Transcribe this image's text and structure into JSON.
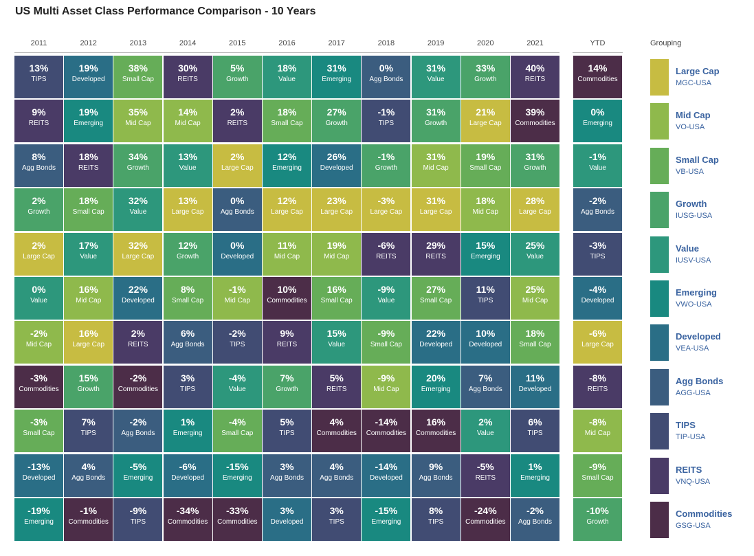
{
  "title": "US Multi Asset Class Performance Comparison - 10 Years",
  "grouping_label": "Grouping",
  "chart_data": {
    "type": "table",
    "title": "US Multi Asset Class Performance Comparison - 10 Years",
    "columns": [
      "2011",
      "2012",
      "2013",
      "2014",
      "2015",
      "2016",
      "2017",
      "2018",
      "2019",
      "2020",
      "2021",
      "YTD"
    ],
    "colors": {
      "Large Cap": "#c7bc42",
      "Mid Cap": "#8fb94c",
      "Small Cap": "#66ad58",
      "Growth": "#4aa369",
      "Value": "#2d977c",
      "Emerging": "#198980",
      "Developed": "#2a6e86",
      "Agg Bonds": "#3b5d7f",
      "TIPS": "#414c73",
      "REITS": "#4a3b66",
      "Commodities": "#4c2d48"
    },
    "legend": [
      {
        "name": "Large Cap",
        "ticker": "MGC-USA"
      },
      {
        "name": "Mid Cap",
        "ticker": "VO-USA"
      },
      {
        "name": "Small Cap",
        "ticker": "VB-USA"
      },
      {
        "name": "Growth",
        "ticker": "IUSG-USA"
      },
      {
        "name": "Value",
        "ticker": "IUSV-USA"
      },
      {
        "name": "Emerging",
        "ticker": "VWO-USA"
      },
      {
        "name": "Developed",
        "ticker": "VEA-USA"
      },
      {
        "name": "Agg Bonds",
        "ticker": "AGG-USA"
      },
      {
        "name": "TIPS",
        "ticker": "TIP-USA"
      },
      {
        "name": "REITS",
        "ticker": "VNQ-USA"
      },
      {
        "name": "Commodities",
        "ticker": "GSG-USA"
      }
    ],
    "data": [
      [
        {
          "v": "13%",
          "n": "TIPS"
        },
        {
          "v": "9%",
          "n": "REITS"
        },
        {
          "v": "8%",
          "n": "Agg Bonds"
        },
        {
          "v": "2%",
          "n": "Growth"
        },
        {
          "v": "2%",
          "n": "Large Cap"
        },
        {
          "v": "0%",
          "n": "Value"
        },
        {
          "v": "-2%",
          "n": "Mid Cap"
        },
        {
          "v": "-3%",
          "n": "Commodities"
        },
        {
          "v": "-3%",
          "n": "Small Cap"
        },
        {
          "v": "-13%",
          "n": "Developed"
        },
        {
          "v": "-19%",
          "n": "Emerging"
        }
      ],
      [
        {
          "v": "19%",
          "n": "Developed"
        },
        {
          "v": "19%",
          "n": "Emerging"
        },
        {
          "v": "18%",
          "n": "REITS"
        },
        {
          "v": "18%",
          "n": "Small Cap"
        },
        {
          "v": "17%",
          "n": "Value"
        },
        {
          "v": "16%",
          "n": "Mid Cap"
        },
        {
          "v": "16%",
          "n": "Large Cap"
        },
        {
          "v": "15%",
          "n": "Growth"
        },
        {
          "v": "7%",
          "n": "TIPS"
        },
        {
          "v": "4%",
          "n": "Agg Bonds"
        },
        {
          "v": "-1%",
          "n": "Commodities"
        }
      ],
      [
        {
          "v": "38%",
          "n": "Small Cap"
        },
        {
          "v": "35%",
          "n": "Mid Cap"
        },
        {
          "v": "34%",
          "n": "Growth"
        },
        {
          "v": "32%",
          "n": "Value"
        },
        {
          "v": "32%",
          "n": "Large Cap"
        },
        {
          "v": "22%",
          "n": "Developed"
        },
        {
          "v": "2%",
          "n": "REITS"
        },
        {
          "v": "-2%",
          "n": "Commodities"
        },
        {
          "v": "-2%",
          "n": "Agg Bonds"
        },
        {
          "v": "-5%",
          "n": "Emerging"
        },
        {
          "v": "-9%",
          "n": "TIPS"
        }
      ],
      [
        {
          "v": "30%",
          "n": "REITS"
        },
        {
          "v": "14%",
          "n": "Mid Cap"
        },
        {
          "v": "13%",
          "n": "Value"
        },
        {
          "v": "13%",
          "n": "Large Cap"
        },
        {
          "v": "12%",
          "n": "Growth"
        },
        {
          "v": "8%",
          "n": "Small Cap"
        },
        {
          "v": "6%",
          "n": "Agg Bonds"
        },
        {
          "v": "3%",
          "n": "TIPS"
        },
        {
          "v": "1%",
          "n": "Emerging"
        },
        {
          "v": "-6%",
          "n": "Developed"
        },
        {
          "v": "-34%",
          "n": "Commodities"
        }
      ],
      [
        {
          "v": "5%",
          "n": "Growth"
        },
        {
          "v": "2%",
          "n": "REITS"
        },
        {
          "v": "2%",
          "n": "Large Cap"
        },
        {
          "v": "0%",
          "n": "Agg Bonds"
        },
        {
          "v": "0%",
          "n": "Developed"
        },
        {
          "v": "-1%",
          "n": "Mid Cap"
        },
        {
          "v": "-2%",
          "n": "TIPS"
        },
        {
          "v": "-4%",
          "n": "Value"
        },
        {
          "v": "-4%",
          "n": "Small Cap"
        },
        {
          "v": "-15%",
          "n": "Emerging"
        },
        {
          "v": "-33%",
          "n": "Commodities"
        }
      ],
      [
        {
          "v": "18%",
          "n": "Value"
        },
        {
          "v": "18%",
          "n": "Small Cap"
        },
        {
          "v": "12%",
          "n": "Emerging"
        },
        {
          "v": "12%",
          "n": "Large Cap"
        },
        {
          "v": "11%",
          "n": "Mid Cap"
        },
        {
          "v": "10%",
          "n": "Commodities"
        },
        {
          "v": "9%",
          "n": "REITS"
        },
        {
          "v": "7%",
          "n": "Growth"
        },
        {
          "v": "5%",
          "n": "TIPS"
        },
        {
          "v": "3%",
          "n": "Agg Bonds"
        },
        {
          "v": "3%",
          "n": "Developed"
        }
      ],
      [
        {
          "v": "31%",
          "n": "Emerging"
        },
        {
          "v": "27%",
          "n": "Growth"
        },
        {
          "v": "26%",
          "n": "Developed"
        },
        {
          "v": "23%",
          "n": "Large Cap"
        },
        {
          "v": "19%",
          "n": "Mid Cap"
        },
        {
          "v": "16%",
          "n": "Small Cap"
        },
        {
          "v": "15%",
          "n": "Value"
        },
        {
          "v": "5%",
          "n": "REITS"
        },
        {
          "v": "4%",
          "n": "Commodities"
        },
        {
          "v": "4%",
          "n": "Agg Bonds"
        },
        {
          "v": "3%",
          "n": "TIPS"
        }
      ],
      [
        {
          "v": "0%",
          "n": "Agg Bonds"
        },
        {
          "v": "-1%",
          "n": "TIPS"
        },
        {
          "v": "-1%",
          "n": "Growth"
        },
        {
          "v": "-3%",
          "n": "Large Cap"
        },
        {
          "v": "-6%",
          "n": "REITS"
        },
        {
          "v": "-9%",
          "n": "Value"
        },
        {
          "v": "-9%",
          "n": "Small Cap"
        },
        {
          "v": "-9%",
          "n": "Mid Cap"
        },
        {
          "v": "-14%",
          "n": "Commodities"
        },
        {
          "v": "-14%",
          "n": "Developed"
        },
        {
          "v": "-15%",
          "n": "Emerging"
        }
      ],
      [
        {
          "v": "31%",
          "n": "Value"
        },
        {
          "v": "31%",
          "n": "Growth"
        },
        {
          "v": "31%",
          "n": "Mid Cap"
        },
        {
          "v": "31%",
          "n": "Large Cap"
        },
        {
          "v": "29%",
          "n": "REITS"
        },
        {
          "v": "27%",
          "n": "Small Cap"
        },
        {
          "v": "22%",
          "n": "Developed"
        },
        {
          "v": "20%",
          "n": "Emerging"
        },
        {
          "v": "16%",
          "n": "Commodities"
        },
        {
          "v": "9%",
          "n": "Agg Bonds"
        },
        {
          "v": "8%",
          "n": "TIPS"
        }
      ],
      [
        {
          "v": "33%",
          "n": "Growth"
        },
        {
          "v": "21%",
          "n": "Large Cap"
        },
        {
          "v": "19%",
          "n": "Small Cap"
        },
        {
          "v": "18%",
          "n": "Mid Cap"
        },
        {
          "v": "15%",
          "n": "Emerging"
        },
        {
          "v": "11%",
          "n": "TIPS"
        },
        {
          "v": "10%",
          "n": "Developed"
        },
        {
          "v": "7%",
          "n": "Agg Bonds"
        },
        {
          "v": "2%",
          "n": "Value"
        },
        {
          "v": "-5%",
          "n": "REITS"
        },
        {
          "v": "-24%",
          "n": "Commodities"
        }
      ],
      [
        {
          "v": "40%",
          "n": "REITS"
        },
        {
          "v": "39%",
          "n": "Commodities"
        },
        {
          "v": "31%",
          "n": "Growth"
        },
        {
          "v": "28%",
          "n": "Large Cap"
        },
        {
          "v": "25%",
          "n": "Value"
        },
        {
          "v": "25%",
          "n": "Mid Cap"
        },
        {
          "v": "18%",
          "n": "Small Cap"
        },
        {
          "v": "11%",
          "n": "Developed"
        },
        {
          "v": "6%",
          "n": "TIPS"
        },
        {
          "v": "1%",
          "n": "Emerging"
        },
        {
          "v": "-2%",
          "n": "Agg Bonds"
        }
      ],
      [
        {
          "v": "14%",
          "n": "Commodities"
        },
        {
          "v": "0%",
          "n": "Emerging"
        },
        {
          "v": "-1%",
          "n": "Value"
        },
        {
          "v": "-2%",
          "n": "Agg Bonds"
        },
        {
          "v": "-3%",
          "n": "TIPS"
        },
        {
          "v": "-4%",
          "n": "Developed"
        },
        {
          "v": "-6%",
          "n": "Large Cap"
        },
        {
          "v": "-8%",
          "n": "REITS"
        },
        {
          "v": "-8%",
          "n": "Mid Cap"
        },
        {
          "v": "-9%",
          "n": "Small Cap"
        },
        {
          "v": "-10%",
          "n": "Growth"
        }
      ]
    ]
  }
}
